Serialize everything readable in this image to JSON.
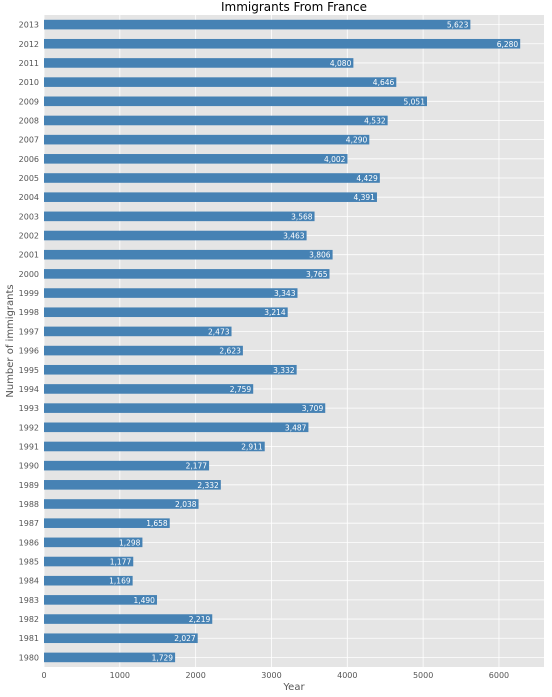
{
  "chart_data": {
    "type": "bar",
    "orientation": "horizontal",
    "title": "Immigrants From France",
    "xlabel": "Year",
    "ylabel": "Number of immigrants",
    "categories": [
      "1980",
      "1981",
      "1982",
      "1983",
      "1984",
      "1985",
      "1986",
      "1987",
      "1988",
      "1989",
      "1990",
      "1991",
      "1992",
      "1993",
      "1994",
      "1995",
      "1996",
      "1997",
      "1998",
      "1999",
      "2000",
      "2001",
      "2002",
      "2003",
      "2004",
      "2005",
      "2006",
      "2007",
      "2008",
      "2009",
      "2010",
      "2011",
      "2012",
      "2013"
    ],
    "values": [
      1729,
      2027,
      2219,
      1490,
      1169,
      1177,
      1298,
      1658,
      2038,
      2332,
      2177,
      2911,
      3487,
      3709,
      2759,
      3332,
      2623,
      2473,
      3214,
      3343,
      3765,
      3806,
      3463,
      3568,
      4391,
      4429,
      4002,
      4290,
      4532,
      5051,
      4646,
      4080,
      6280,
      5623
    ],
    "value_labels": [
      "1,729",
      "2,027",
      "2,219",
      "1,490",
      "1,169",
      "1,177",
      "1,298",
      "1,658",
      "2,038",
      "2,332",
      "2,177",
      "2,911",
      "3,487",
      "3,709",
      "2,759",
      "3,332",
      "2,623",
      "2,473",
      "3,214",
      "3,343",
      "3,765",
      "3,806",
      "3,463",
      "3,568",
      "4,391",
      "4,429",
      "4,002",
      "4,290",
      "4,532",
      "5,051",
      "4,646",
      "4,080",
      "6,280",
      "5,623"
    ],
    "xticks": [
      0,
      1000,
      2000,
      3000,
      4000,
      5000,
      6000
    ],
    "xlim": [
      0,
      6594
    ],
    "grid": true,
    "bar_color": "#4682b4",
    "background_color": "#e5e5e5"
  }
}
